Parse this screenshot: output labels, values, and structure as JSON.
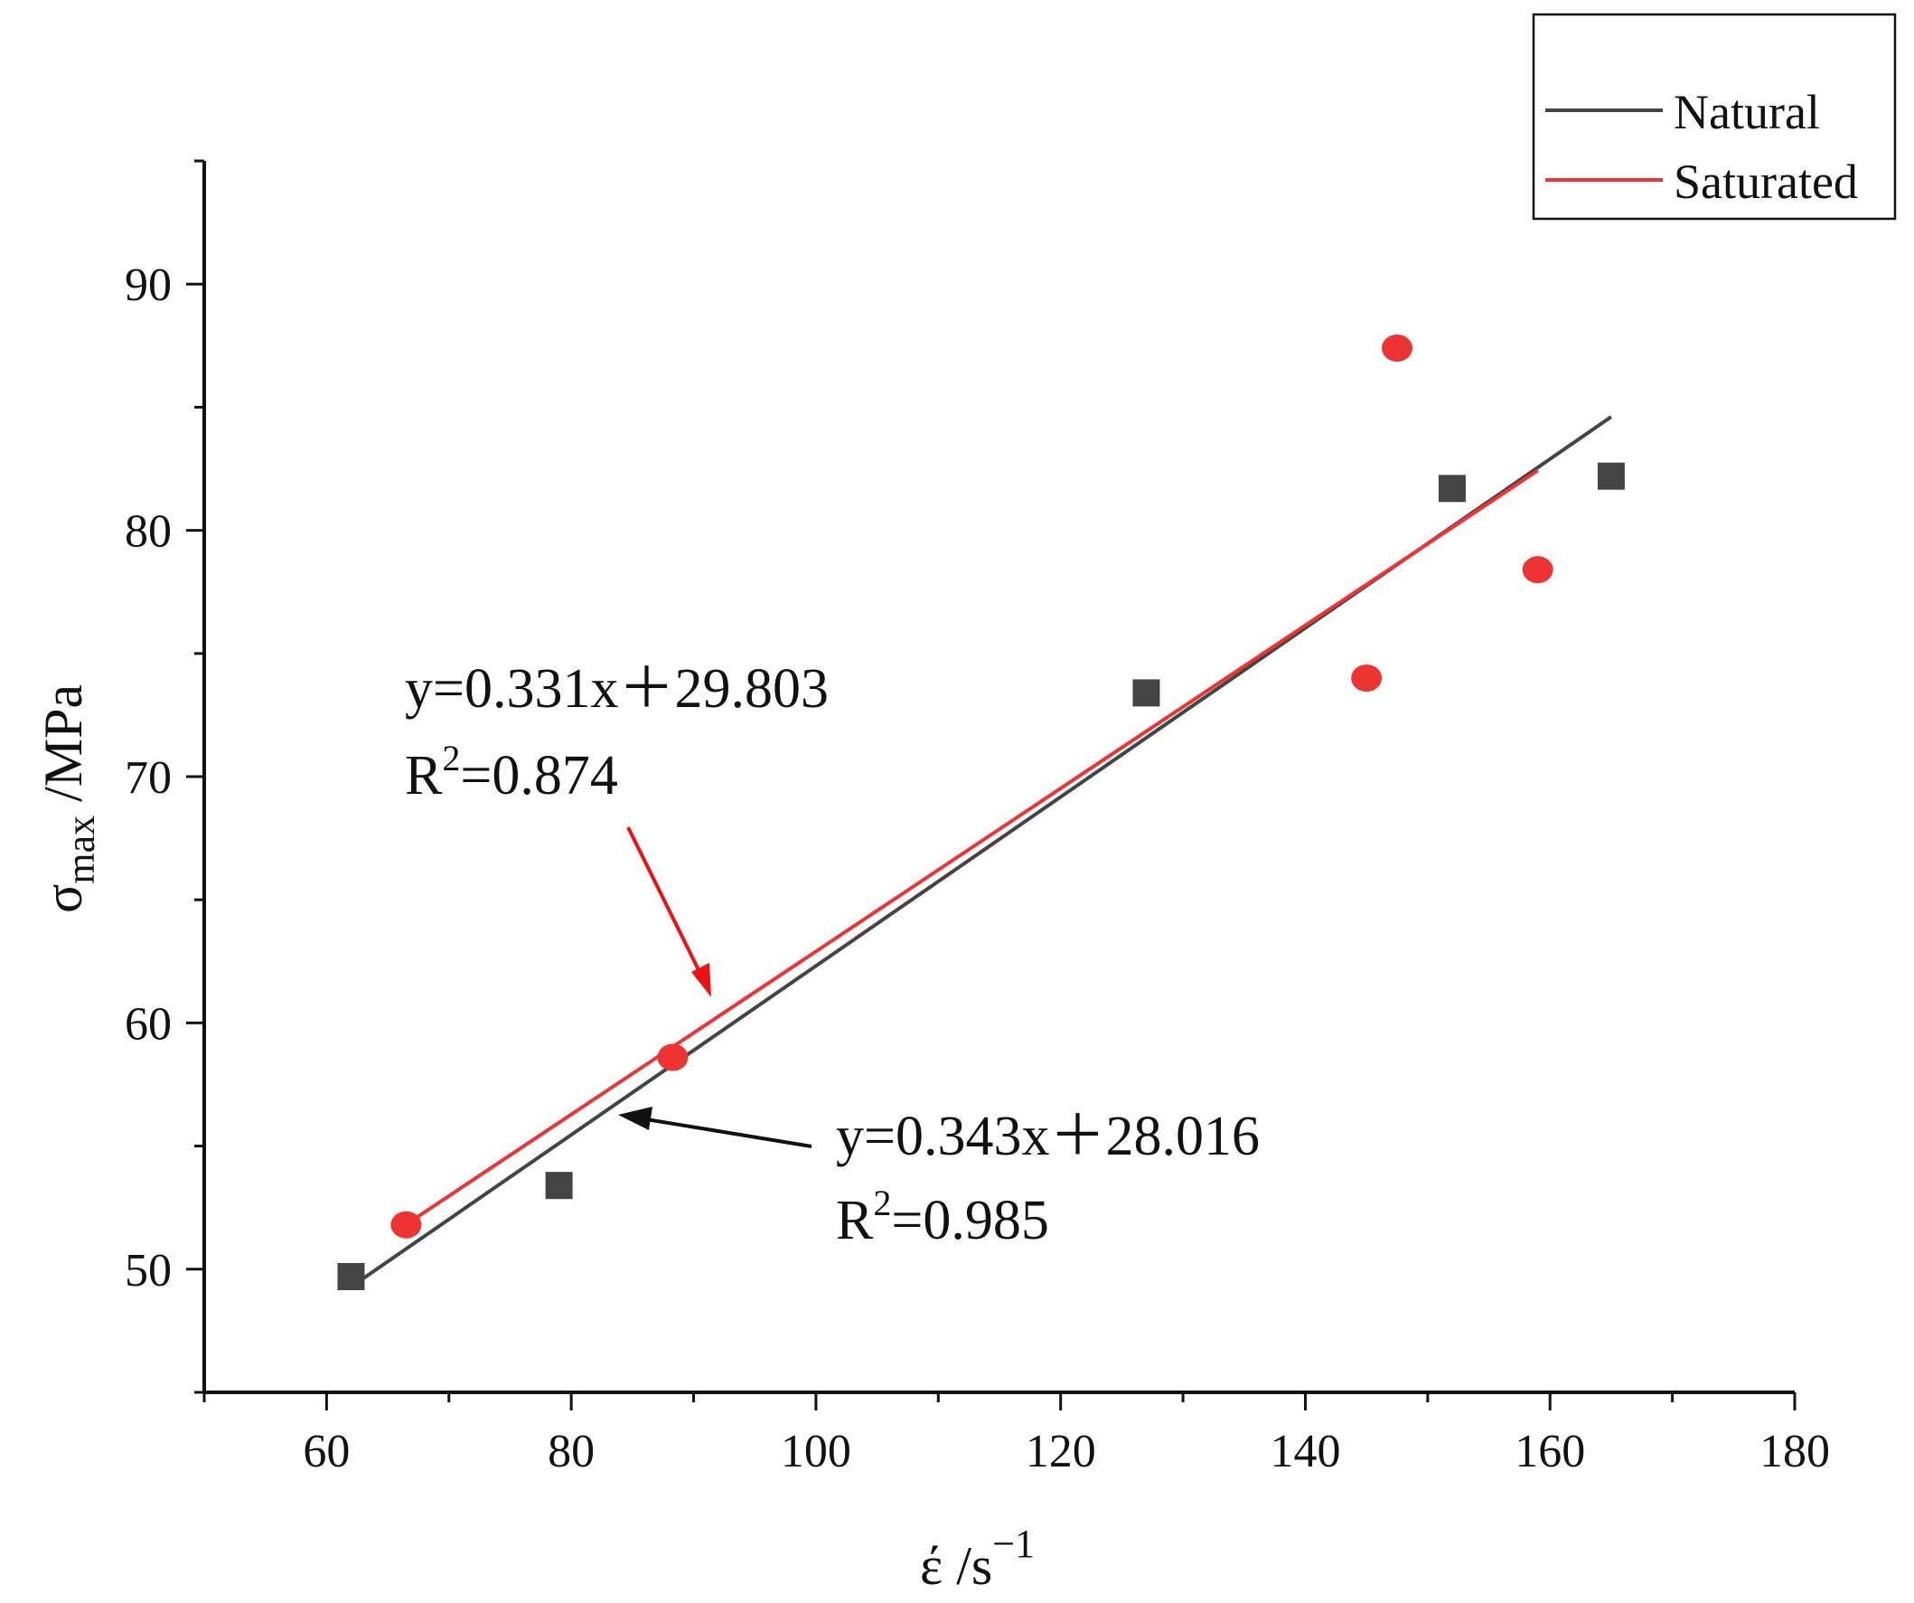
{
  "chart_data": {
    "type": "scatter",
    "title": "",
    "xlabel": "έ /s",
    "xlabel_sup": "−1",
    "ylabel_symbol": "σ",
    "ylabel_sub": "max",
    "ylabel_unit": " /MPa",
    "xlim": [
      50,
      180
    ],
    "ylim": [
      45,
      95
    ],
    "x_ticks": [
      60,
      80,
      100,
      120,
      140,
      160,
      180
    ],
    "y_ticks": [
      50,
      60,
      70,
      80,
      90
    ],
    "x_minor_step": 10,
    "y_minor_step": 5,
    "legend_position": "top-right",
    "series": [
      {
        "name": "Natural",
        "color": "#444444",
        "marker": "square",
        "points": [
          {
            "x": 62,
            "y": 49.7
          },
          {
            "x": 79,
            "y": 53.4
          },
          {
            "x": 127,
            "y": 73.4
          },
          {
            "x": 152,
            "y": 81.7
          },
          {
            "x": 165,
            "y": 82.2
          }
        ],
        "fit": {
          "slope": 0.343,
          "intercept": 28.016,
          "x_range": [
            62,
            165
          ]
        },
        "equation": "y=0.343x＋28.016",
        "r2_prefix": "R",
        "r2_exp": "2",
        "r2_value": "=0.985"
      },
      {
        "name": "Saturated",
        "color": "#ee3333",
        "marker": "circle",
        "points": [
          {
            "x": 66.5,
            "y": 51.8
          },
          {
            "x": 88.3,
            "y": 58.6
          },
          {
            "x": 145,
            "y": 74.0
          },
          {
            "x": 147.5,
            "y": 87.4
          },
          {
            "x": 159,
            "y": 78.4
          }
        ],
        "fit": {
          "slope": 0.331,
          "intercept": 29.803,
          "x_range": [
            66.5,
            159
          ]
        },
        "equation": "y=0.331x＋29.803",
        "r2_prefix": "R",
        "r2_exp": "2",
        "r2_value": "=0.874"
      }
    ]
  }
}
